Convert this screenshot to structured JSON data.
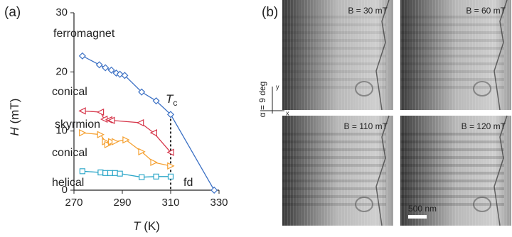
{
  "panel_labels": [
    "(a)",
    "(b)"
  ],
  "chart_data": {
    "type": "line",
    "x_label": {
      "symbol": "T",
      "unit": "(K)"
    },
    "y_label": {
      "symbol": "H",
      "unit": "(mT)"
    },
    "xlim": [
      270,
      330
    ],
    "xticks": [
      270,
      290,
      310,
      330
    ],
    "ylim": [
      0,
      30
    ],
    "yticks": [
      0,
      10,
      20,
      30
    ],
    "annotations": [
      "ferromagnet",
      "conical",
      "skyrmion",
      "conical",
      "helical",
      "fd"
    ],
    "tc_label": {
      "symbol": "T",
      "subscript": "c"
    },
    "series": [
      {
        "color": "#3b70c4",
        "marker": "diamond",
        "x": [
          273.5,
          280.5,
          283,
          285.5,
          287.5,
          289,
          291,
          298,
          304,
          310,
          328
        ],
        "values": [
          22.7,
          21.2,
          20.7,
          20.3,
          19.8,
          19.6,
          19.4,
          16.6,
          15.1,
          12.8,
          0
        ]
      },
      {
        "color": "#d6364a",
        "marker": "triangle-left",
        "x": [
          273.5,
          281,
          282.5,
          284.5,
          285.5,
          297.5,
          303,
          310
        ],
        "values": [
          13.4,
          13.2,
          12,
          11.9,
          11.8,
          11.4,
          9.7,
          6.4
        ]
      },
      {
        "color": "#f5a030",
        "marker": "triangle-right",
        "x": [
          273.5,
          281,
          283,
          284,
          285.5,
          287,
          291.5,
          298,
          303,
          310
        ],
        "values": [
          9.7,
          9.4,
          8.2,
          7.7,
          8.2,
          8.2,
          8.5,
          6.5,
          4.7,
          4.1
        ]
      },
      {
        "color": "#2aa6c8",
        "marker": "square",
        "x": [
          273.5,
          281,
          283,
          285,
          287,
          289,
          298,
          304,
          310
        ],
        "values": [
          3.2,
          3,
          2.9,
          2.9,
          2.9,
          2.8,
          2.2,
          2.3,
          2.3
        ]
      }
    ]
  },
  "images": [
    {
      "label": "B = 30 mT"
    },
    {
      "label": "B = 60 mT"
    },
    {
      "label": "B = 110 mT"
    },
    {
      "label": "B = 120 mT"
    }
  ],
  "scale_bar": "500 nm",
  "angle_label": "α = 9 deg",
  "axis_letters": [
    "y",
    "x"
  ]
}
